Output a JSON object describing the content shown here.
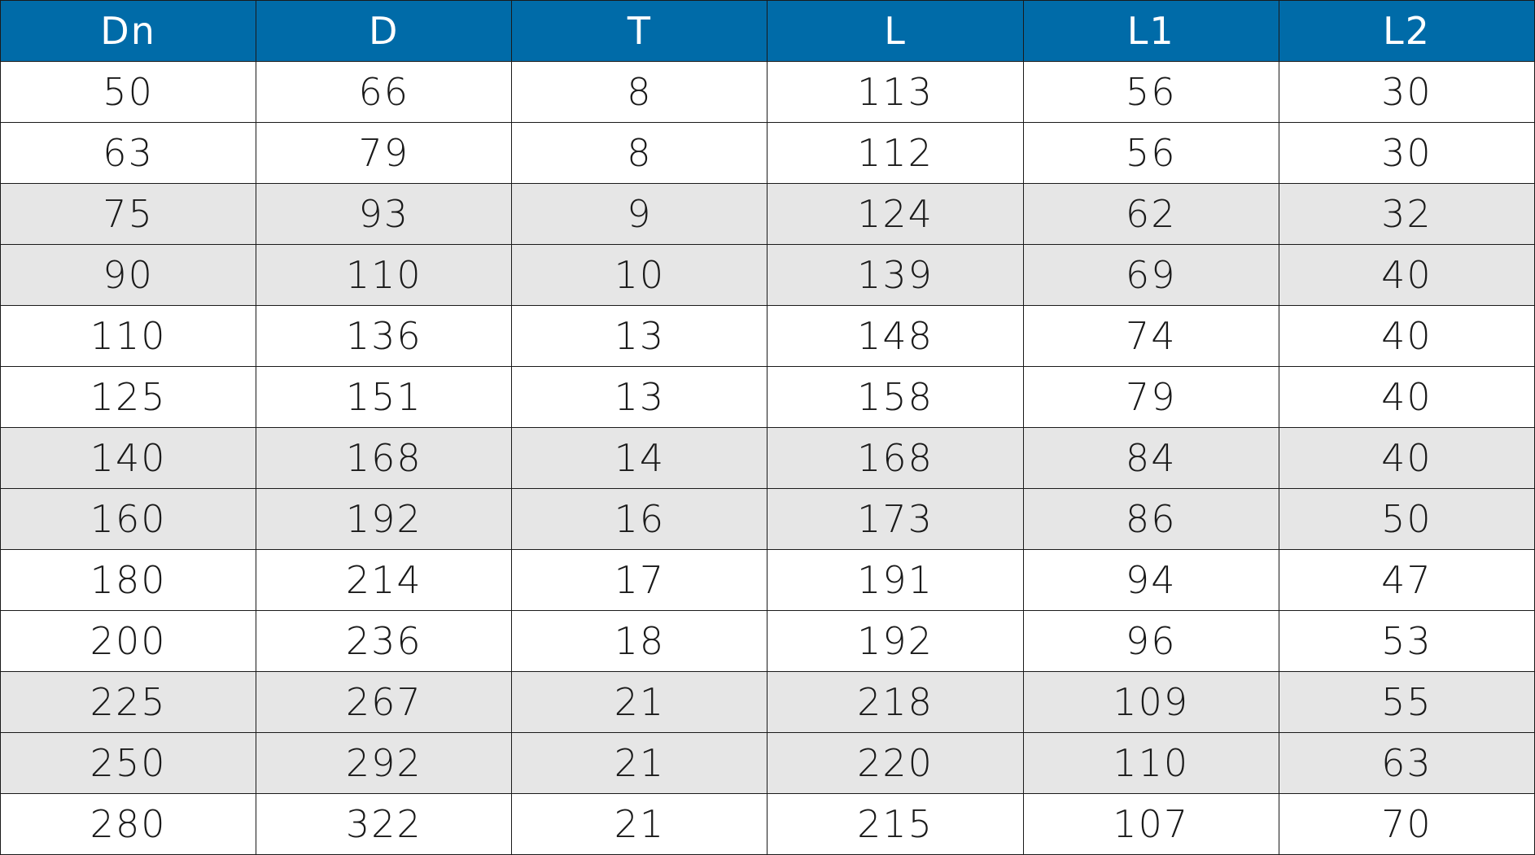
{
  "colors": {
    "header_bg": "#006BA8",
    "header_text": "#FFFFFF",
    "shaded_row": "#E6E6E6"
  },
  "table": {
    "headers": [
      "Dn",
      "D",
      "T",
      "L",
      "L1",
      "L2"
    ],
    "rows": [
      {
        "shaded": false,
        "cells": [
          "50",
          "66",
          "8",
          "113",
          "56",
          "30"
        ]
      },
      {
        "shaded": false,
        "cells": [
          "63",
          "79",
          "8",
          "112",
          "56",
          "30"
        ]
      },
      {
        "shaded": true,
        "cells": [
          "75",
          "93",
          "9",
          "124",
          "62",
          "32"
        ]
      },
      {
        "shaded": true,
        "cells": [
          "90",
          "110",
          "10",
          "139",
          "69",
          "40"
        ]
      },
      {
        "shaded": false,
        "cells": [
          "110",
          "136",
          "13",
          "148",
          "74",
          "40"
        ]
      },
      {
        "shaded": false,
        "cells": [
          "125",
          "151",
          "13",
          "158",
          "79",
          "40"
        ]
      },
      {
        "shaded": true,
        "cells": [
          "140",
          "168",
          "14",
          "168",
          "84",
          "40"
        ]
      },
      {
        "shaded": true,
        "cells": [
          "160",
          "192",
          "16",
          "173",
          "86",
          "50"
        ]
      },
      {
        "shaded": false,
        "cells": [
          "180",
          "214",
          "17",
          "191",
          "94",
          "47"
        ]
      },
      {
        "shaded": false,
        "cells": [
          "200",
          "236",
          "18",
          "192",
          "96",
          "53"
        ]
      },
      {
        "shaded": true,
        "cells": [
          "225",
          "267",
          "21",
          "218",
          "109",
          "55"
        ]
      },
      {
        "shaded": true,
        "cells": [
          "250",
          "292",
          "21",
          "220",
          "110",
          "63"
        ]
      },
      {
        "shaded": false,
        "cells": [
          "280",
          "322",
          "21",
          "215",
          "107",
          "70"
        ]
      }
    ]
  }
}
